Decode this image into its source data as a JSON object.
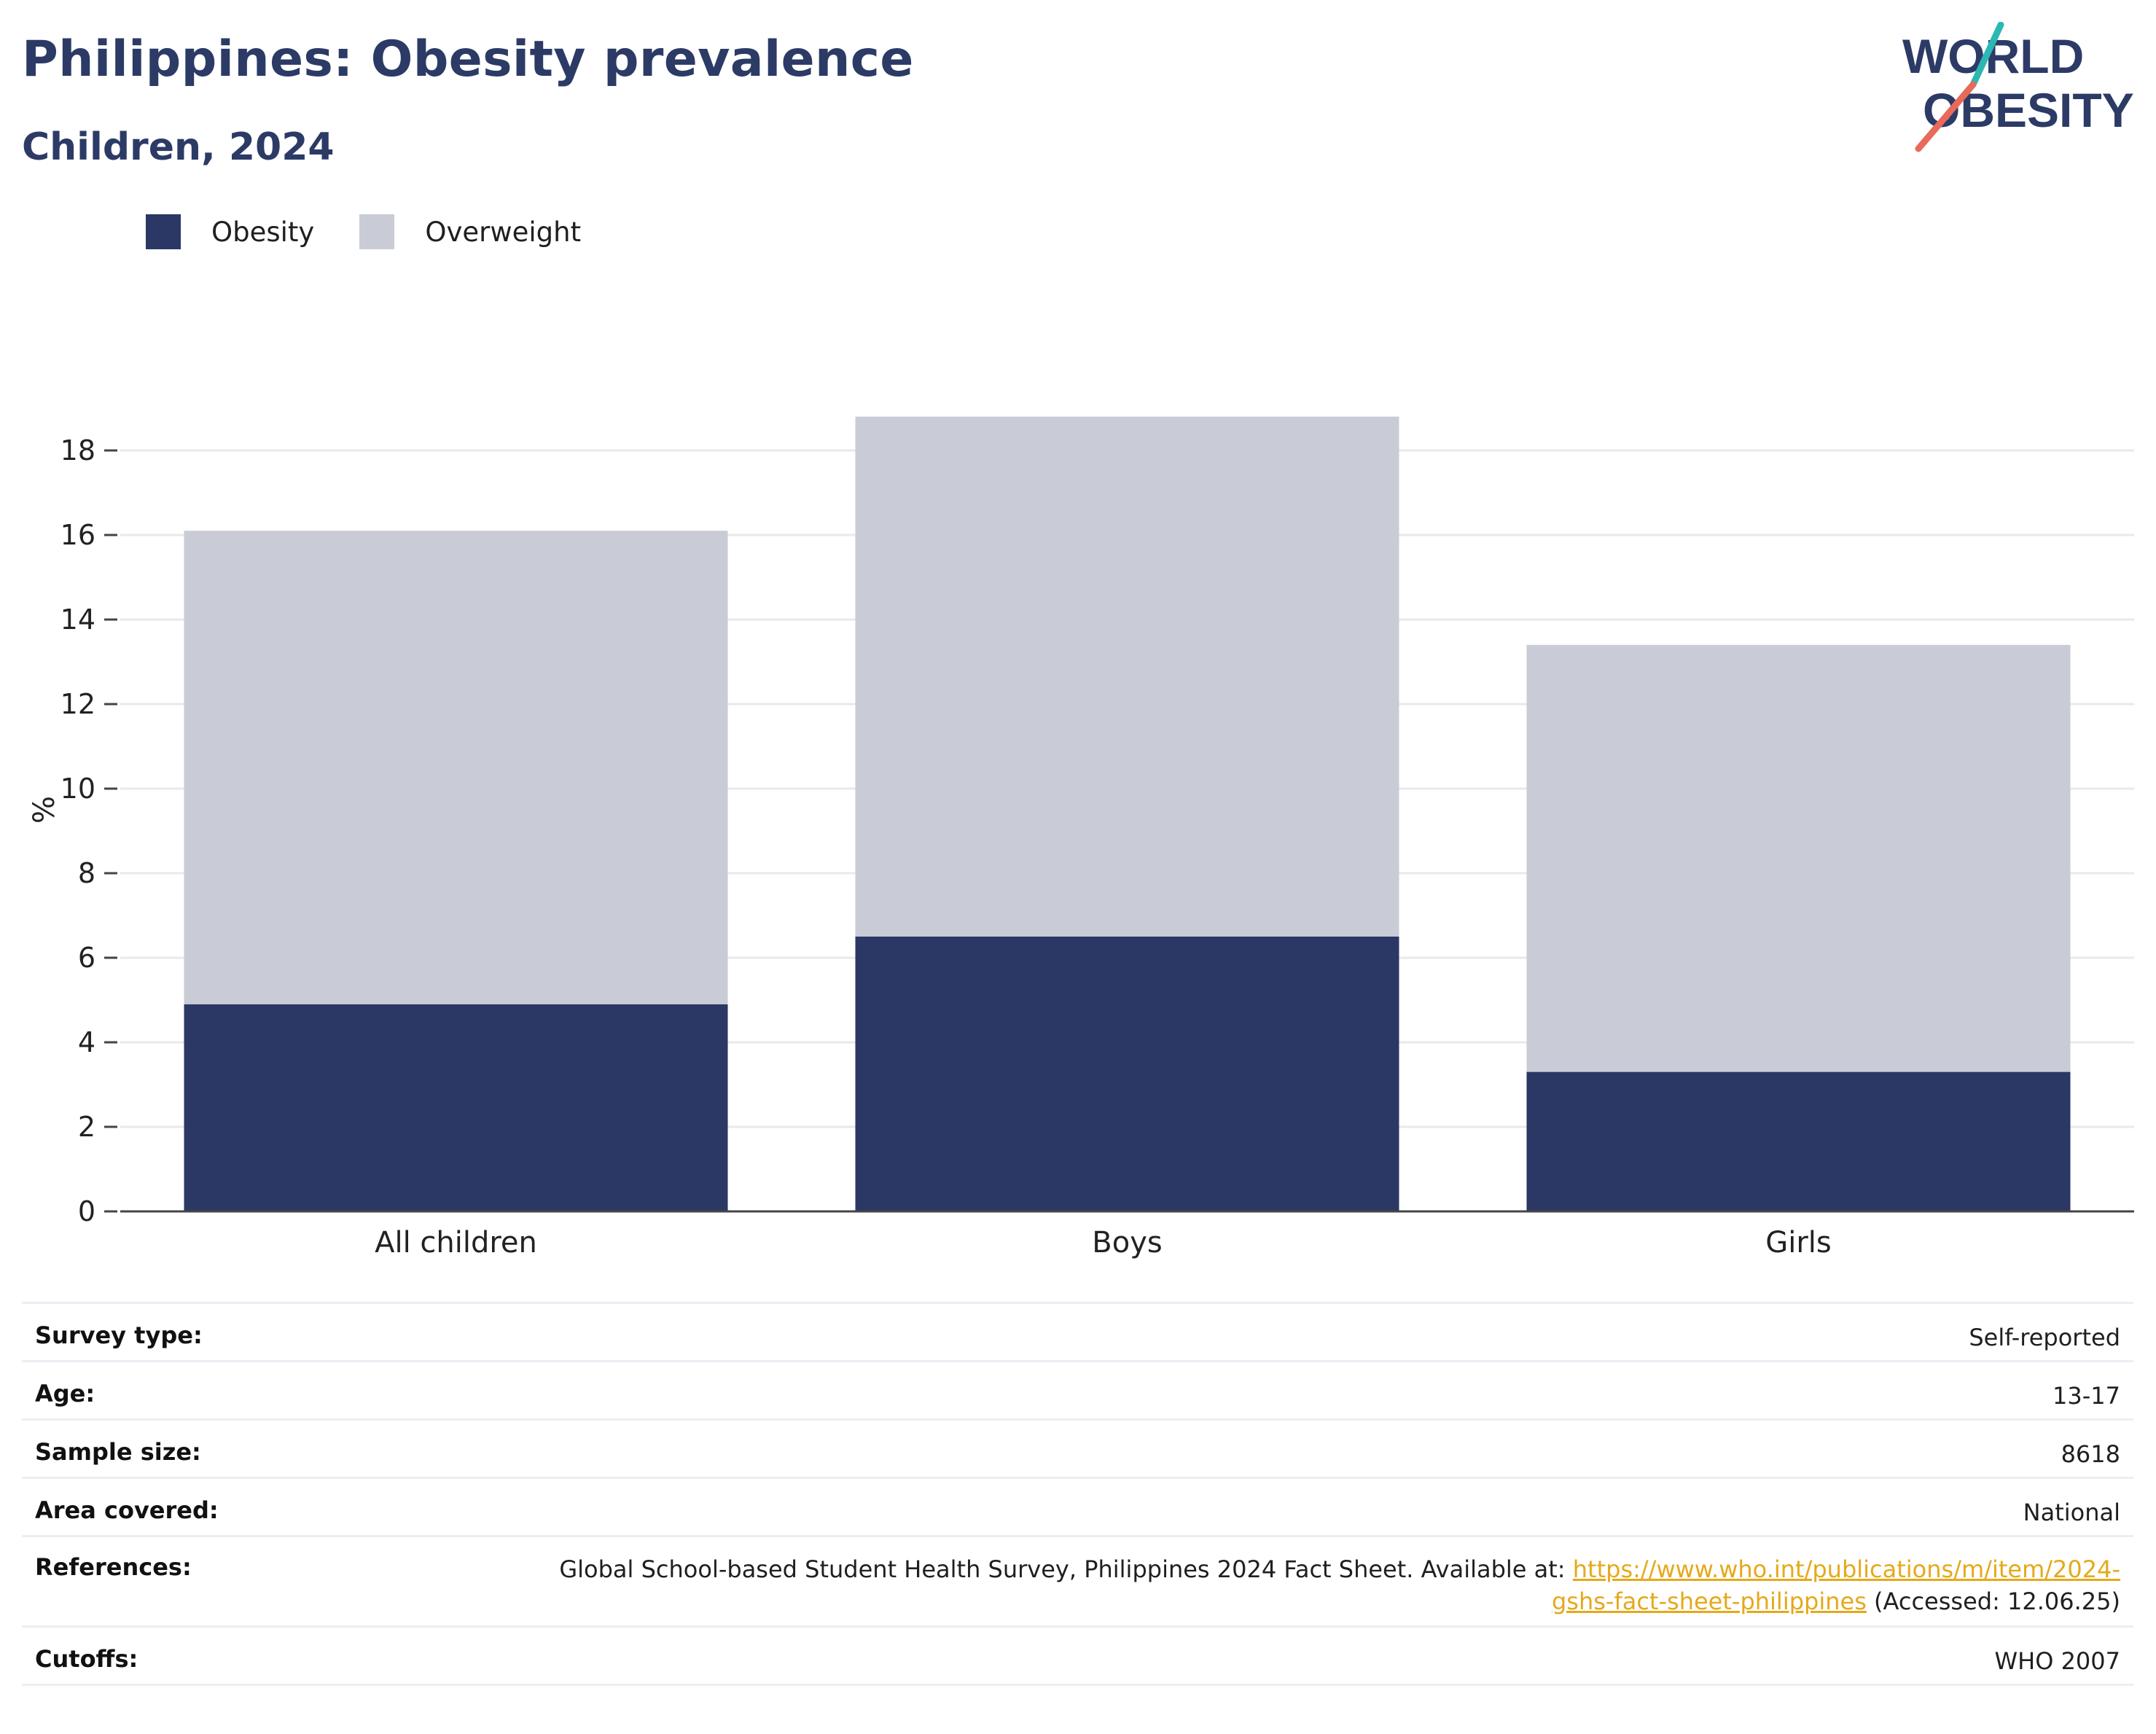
{
  "header": {
    "title": "Philippines: Obesity prevalence",
    "subtitle": "Children, 2024"
  },
  "logo": {
    "line1": "WORLD",
    "line2": "OBESITY"
  },
  "colors": {
    "obesity": "#2b3764",
    "overweight": "#c9cbd6",
    "text": "#2c3a66",
    "link": "#e5a91a"
  },
  "legend": [
    {
      "label": "Obesity",
      "color": "#2b3764"
    },
    {
      "label": "Overweight",
      "color": "#c9cbd6"
    }
  ],
  "chart_data": {
    "type": "bar",
    "stacked": true,
    "categories": [
      "All children",
      "Boys",
      "Girls"
    ],
    "series": [
      {
        "name": "Obesity",
        "values": [
          4.9,
          6.5,
          3.3
        ]
      },
      {
        "name": "Overweight",
        "values": [
          11.2,
          12.3,
          10.1
        ]
      }
    ],
    "ylabel": "%",
    "ylim": [
      0,
      19
    ],
    "yticks": [
      0,
      2,
      4,
      6,
      8,
      10,
      12,
      14,
      16,
      18
    ],
    "grid": true
  },
  "info": {
    "survey_type": {
      "label": "Survey type:",
      "value": "Self-reported"
    },
    "age": {
      "label": "Age:",
      "value": "13-17"
    },
    "sample_size": {
      "label": "Sample size:",
      "value": "8618"
    },
    "area": {
      "label": "Area covered:",
      "value": "National"
    },
    "references": {
      "label": "References:",
      "text": "Global School-based Student Health Survey, Philippines 2024 Fact Sheet. Available at:",
      "link_a": "https://www.who.int/publications/m/item/2024-",
      "link_b": "gshs-fact-sheet-philippines",
      "accessed": "(Accessed: 12.06.25)"
    },
    "cutoffs": {
      "label": "Cutoffs:",
      "value": "WHO 2007"
    }
  }
}
